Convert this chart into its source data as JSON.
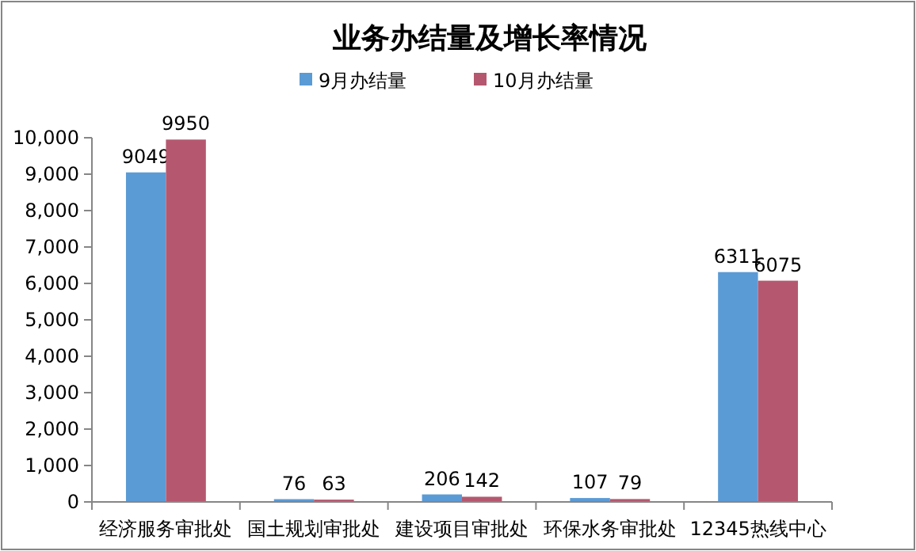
{
  "chart_data": {
    "type": "bar",
    "title": "业务办结量及增长率情况",
    "categories": [
      "经济服务审批处",
      "国土规划审批处",
      "建设项目审批处",
      "环保水务审批处",
      "12345热线中心"
    ],
    "series": [
      {
        "name": "9月办结量",
        "color": "#5b9bd5",
        "values": [
          9049,
          76,
          206,
          107,
          6311
        ]
      },
      {
        "name": "10月办结量",
        "color": "#b5586f",
        "values": [
          9950,
          63,
          142,
          79,
          6075
        ]
      }
    ],
    "ylim": [
      0,
      10000
    ],
    "yticks": [
      {
        "value": 0,
        "label": "0"
      },
      {
        "value": 1000,
        "label": "1,000"
      },
      {
        "value": 2000,
        "label": "2,000"
      },
      {
        "value": 3000,
        "label": "3,000"
      },
      {
        "value": 4000,
        "label": "4,000"
      },
      {
        "value": 5000,
        "label": "5,000"
      },
      {
        "value": 6000,
        "label": "6,000"
      },
      {
        "value": 7000,
        "label": "7,000"
      },
      {
        "value": 8000,
        "label": "8,000"
      },
      {
        "value": 9000,
        "label": "9,000"
      },
      {
        "value": 10000,
        "label": "10,000"
      }
    ],
    "grid": false,
    "legend": "top",
    "data_labels": true
  }
}
